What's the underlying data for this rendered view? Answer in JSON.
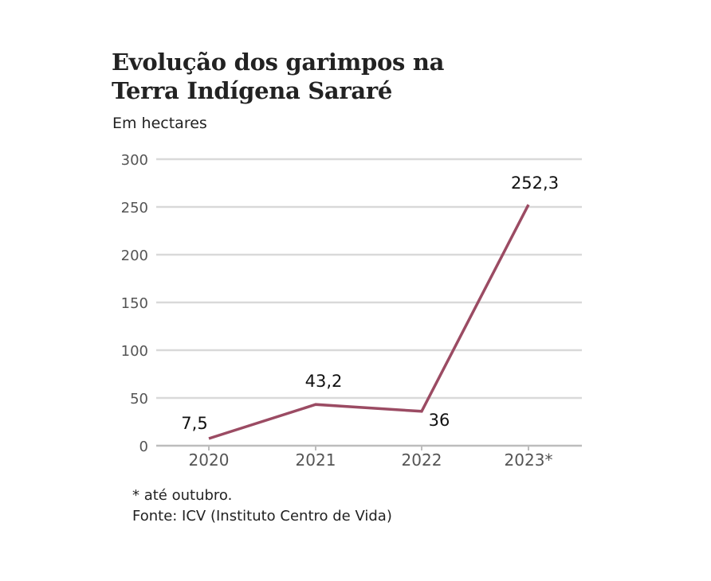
{
  "chart_data": {
    "type": "line",
    "title": "Evolução dos garimpos na Terra Indígena Sararé",
    "title_lines": [
      "Evolução dos garimpos na",
      "Terra Indígena Sararé"
    ],
    "subtitle": "Em hectares",
    "categories": [
      "2020",
      "2021",
      "2022",
      "2023*"
    ],
    "series": [
      {
        "values": [
          7.5,
          43.2,
          36,
          252.3
        ],
        "labels": [
          "7,5",
          "43,2",
          "36",
          "252,3"
        ],
        "color": "#9b4b63"
      }
    ],
    "ylim": [
      0,
      300
    ],
    "yticks": [
      0,
      50,
      100,
      150,
      200,
      250,
      300
    ],
    "ytick_labels": [
      "0",
      "50",
      "100",
      "150",
      "200",
      "250",
      "300"
    ],
    "grid": true,
    "legend": "none",
    "footnote": "* até outubro.",
    "source": "Fonte: ICV (Instituto Centro de Vida)"
  }
}
